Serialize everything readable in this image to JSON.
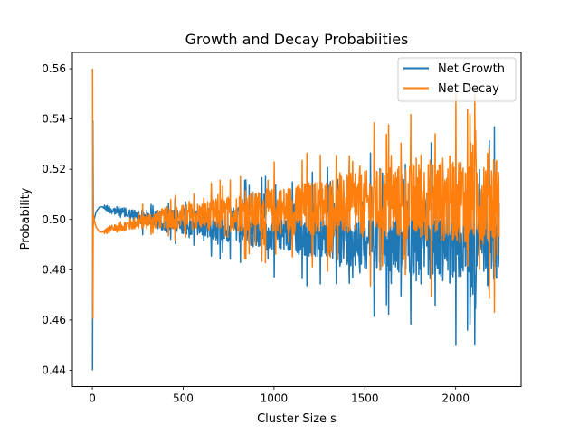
{
  "chart_data": {
    "type": "line",
    "title": "Growth and Decay Probabiities",
    "xlabel": "Cluster Size s",
    "ylabel": "Probability",
    "xlim": [
      -110,
      2360
    ],
    "ylim": [
      0.4335,
      0.5665
    ],
    "xticks": [
      0,
      500,
      1000,
      1500,
      2000
    ],
    "xtick_labels": [
      "0",
      "500",
      "1000",
      "1500",
      "2000"
    ],
    "yticks": [
      0.44,
      0.46,
      0.48,
      0.5,
      0.52,
      0.54,
      0.56
    ],
    "ytick_labels": [
      "0.44",
      "0.46",
      "0.48",
      "0.50",
      "0.52",
      "0.54",
      "0.56"
    ],
    "grid": false,
    "legend_position": "top-right",
    "series": [
      {
        "name": "Net Growth",
        "color": "#1f77b4",
        "x": [
          1,
          2,
          5,
          10,
          20,
          30,
          40,
          60,
          80,
          100,
          150,
          200,
          300,
          400,
          500,
          600,
          700,
          800,
          900,
          1000,
          1100,
          1200,
          1300,
          1400,
          1500,
          1600,
          1700,
          1800,
          1900,
          2000,
          2100,
          2200,
          2240
        ],
        "values": [
          0.44,
          0.56,
          0.498,
          0.5,
          0.503,
          0.504,
          0.505,
          0.505,
          0.5045,
          0.504,
          0.503,
          0.502,
          0.5005,
          0.4995,
          0.499,
          0.4985,
          0.498,
          0.4975,
          0.497,
          0.4965,
          0.496,
          0.4955,
          0.495,
          0.4945,
          0.494,
          0.4935,
          0.493,
          0.4925,
          0.492,
          0.4915,
          0.491,
          0.4905,
          0.49
        ]
      },
      {
        "name": "Net Decay",
        "color": "#ff7f0e",
        "x": [
          1,
          2,
          5,
          10,
          20,
          30,
          40,
          60,
          80,
          100,
          150,
          200,
          300,
          400,
          500,
          600,
          700,
          800,
          900,
          1000,
          1100,
          1200,
          1300,
          1400,
          1500,
          1600,
          1700,
          1800,
          1900,
          2000,
          2100,
          2200,
          2240
        ],
        "values": [
          0.56,
          0.44,
          0.502,
          0.5,
          0.497,
          0.496,
          0.495,
          0.495,
          0.4955,
          0.496,
          0.497,
          0.498,
          0.4995,
          0.5005,
          0.501,
          0.5015,
          0.502,
          0.5025,
          0.503,
          0.5035,
          0.504,
          0.5045,
          0.505,
          0.5055,
          0.506,
          0.5065,
          0.507,
          0.5075,
          0.508,
          0.5085,
          0.509,
          0.5095,
          0.51
        ]
      }
    ]
  }
}
